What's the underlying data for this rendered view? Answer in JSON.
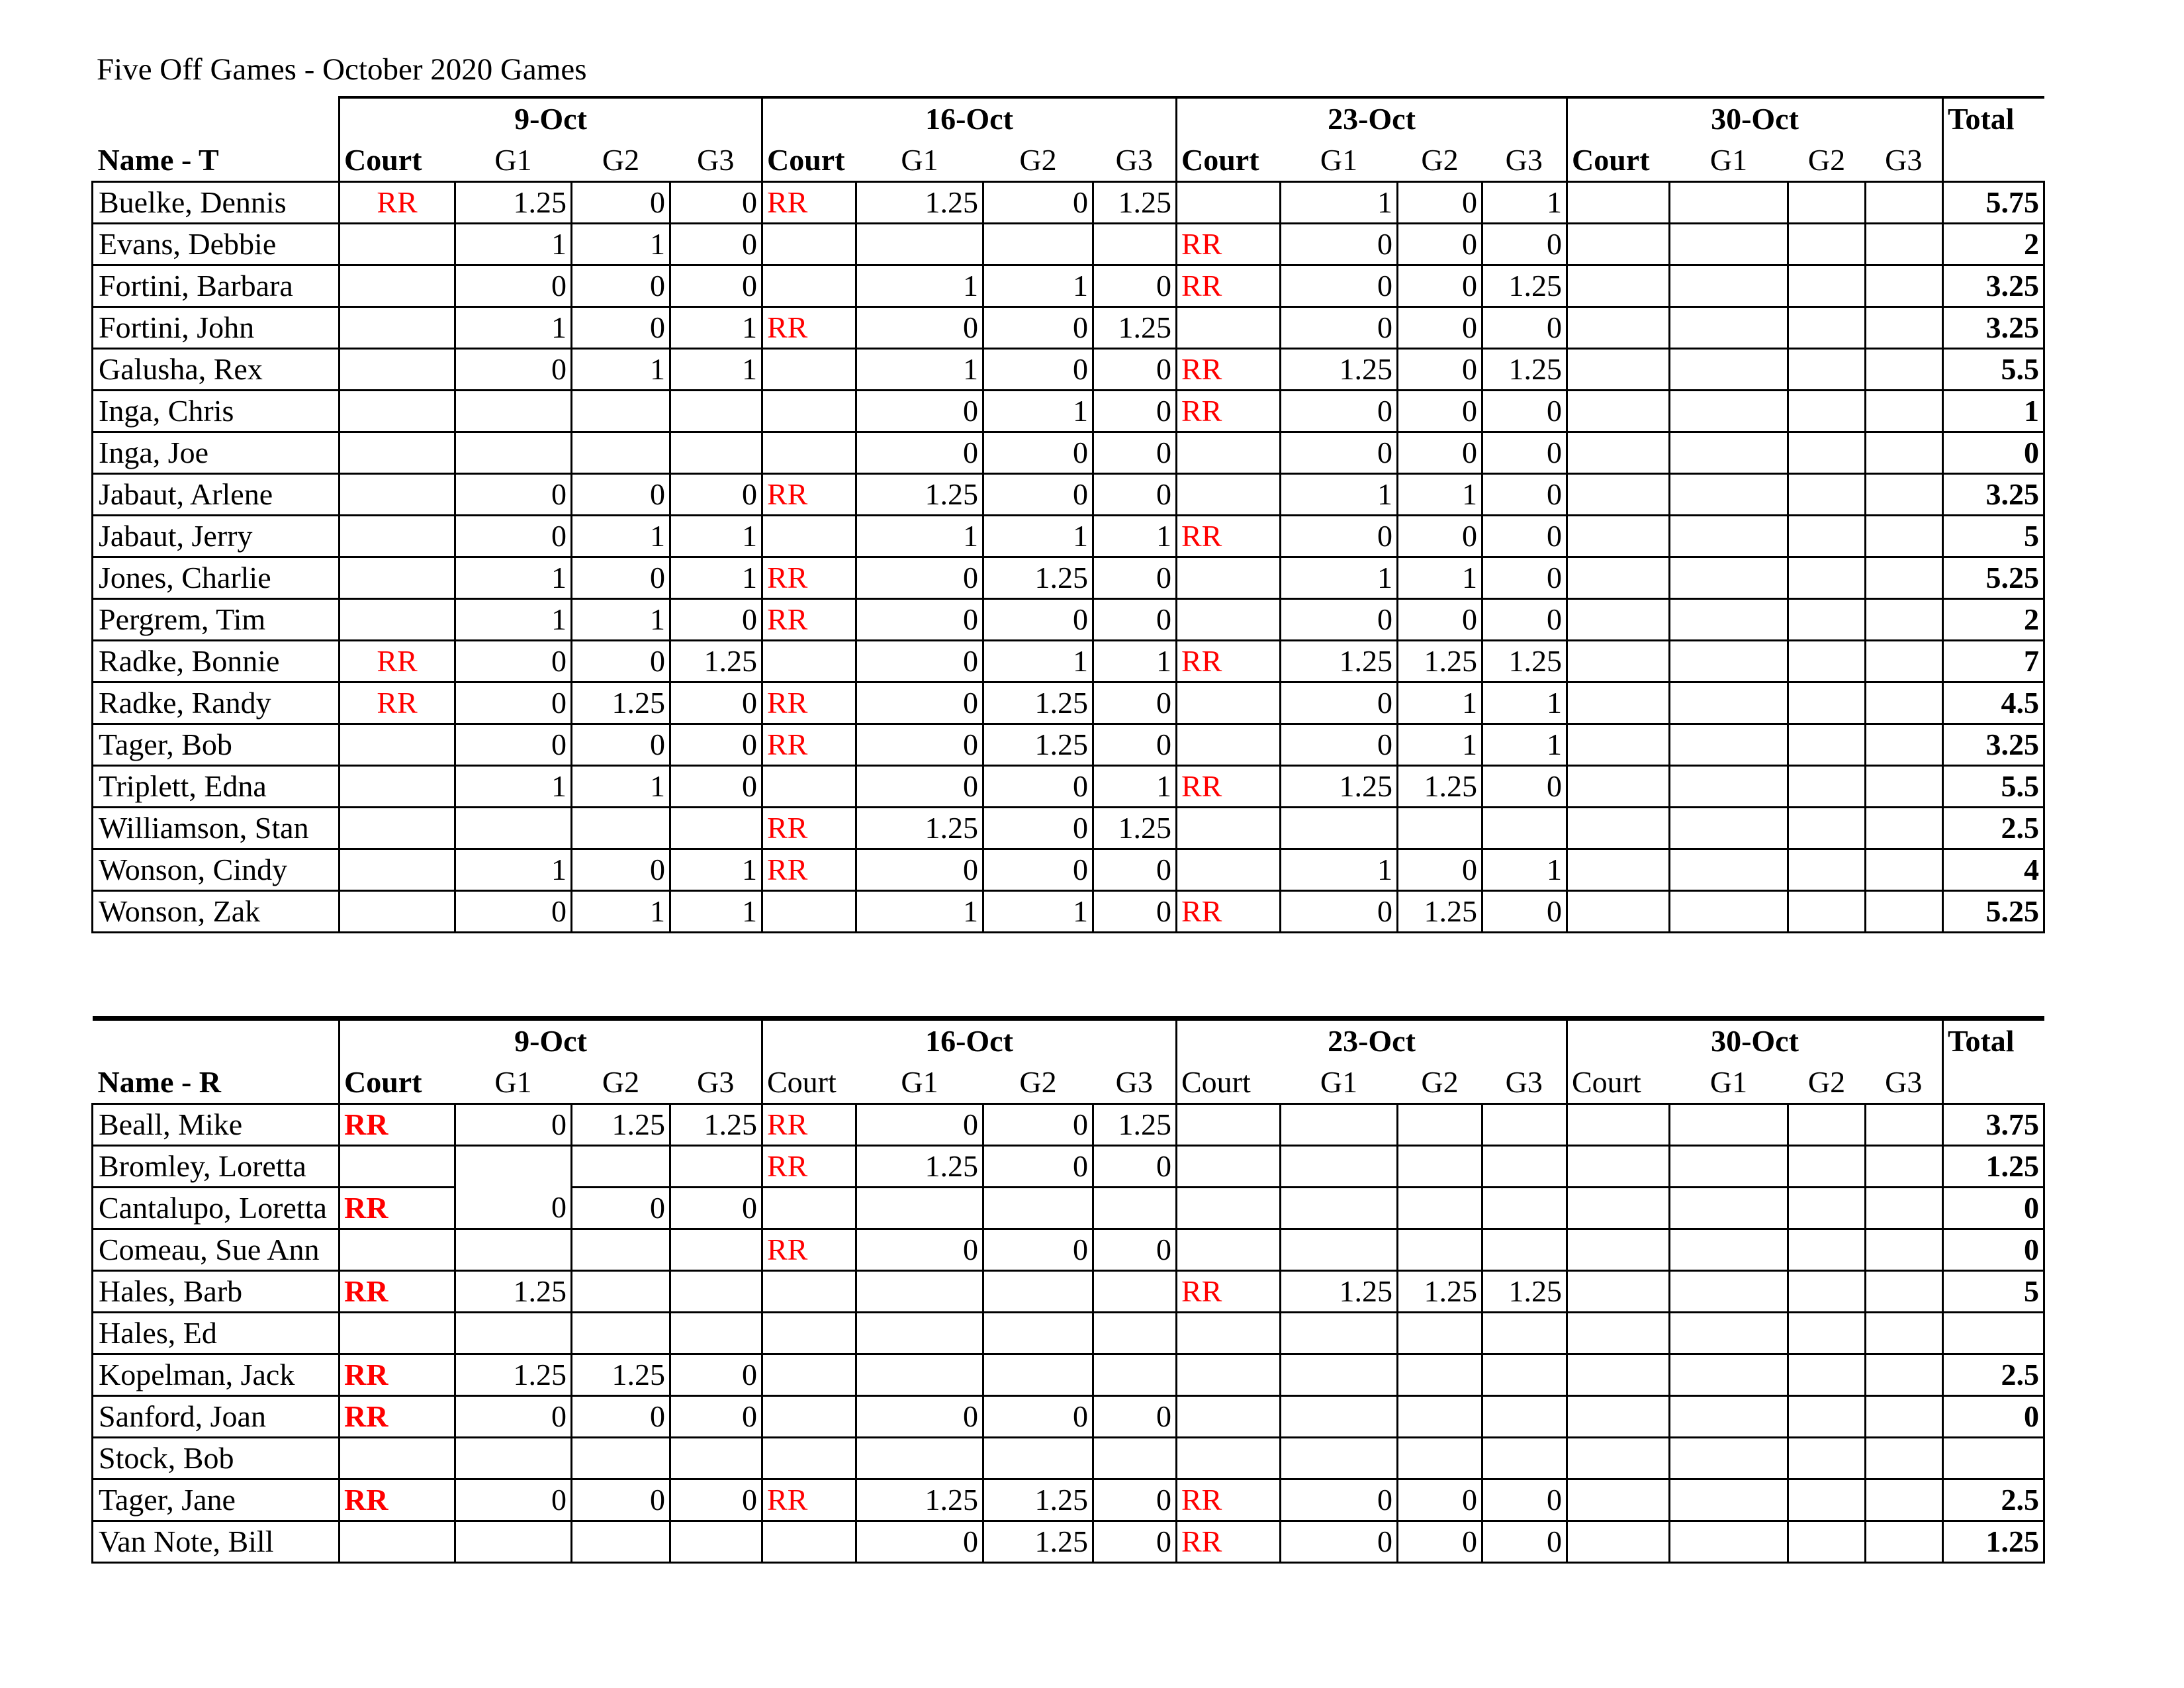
{
  "title": "Five Off Games - October 2020 Games",
  "dates": [
    "9-Oct",
    "16-Oct",
    "23-Oct",
    "30-Oct"
  ],
  "subheaders": {
    "court": "Court",
    "g1": "G1",
    "g2": "G2",
    "g3": "G3"
  },
  "total_label": "Total",
  "colors": {
    "court_marker": "#ff0000"
  },
  "tables": [
    {
      "name_header": "Name - T",
      "rows": [
        {
          "name": "Buelke, Dennis",
          "weeks": [
            [
              "RR",
              "1.25",
              "0",
              "0"
            ],
            [
              "RR",
              "1.25",
              "0",
              "1.25"
            ],
            [
              "",
              "1",
              "0",
              "1"
            ],
            [
              "",
              "",
              "",
              ""
            ]
          ],
          "total": "5.75"
        },
        {
          "name": "Evans, Debbie",
          "weeks": [
            [
              "",
              "1",
              "1",
              "0"
            ],
            [
              "",
              "",
              "",
              ""
            ],
            [
              "RR",
              "0",
              "0",
              "0"
            ],
            [
              "",
              "",
              "",
              ""
            ]
          ],
          "total": "2"
        },
        {
          "name": "Fortini, Barbara",
          "weeks": [
            [
              "",
              "0",
              "0",
              "0"
            ],
            [
              "",
              "1",
              "1",
              "0"
            ],
            [
              "RR",
              "0",
              "0",
              "1.25"
            ],
            [
              "",
              "",
              "",
              ""
            ]
          ],
          "total": "3.25"
        },
        {
          "name": "Fortini, John",
          "weeks": [
            [
              "",
              "1",
              "0",
              "1"
            ],
            [
              "RR",
              "0",
              "0",
              "1.25"
            ],
            [
              "",
              "0",
              "0",
              "0"
            ],
            [
              "",
              "",
              "",
              ""
            ]
          ],
          "total": "3.25"
        },
        {
          "name": "Galusha, Rex",
          "weeks": [
            [
              "",
              "0",
              "1",
              "1"
            ],
            [
              "",
              "1",
              "0",
              "0"
            ],
            [
              "RR",
              "1.25",
              "0",
              "1.25"
            ],
            [
              "",
              "",
              "",
              ""
            ]
          ],
          "total": "5.5"
        },
        {
          "name": "Inga, Chris",
          "weeks": [
            [
              "",
              "",
              "",
              ""
            ],
            [
              "",
              "0",
              "1",
              "0"
            ],
            [
              "RR",
              "0",
              "0",
              "0"
            ],
            [
              "",
              "",
              "",
              ""
            ]
          ],
          "total": "1"
        },
        {
          "name": "Inga, Joe",
          "weeks": [
            [
              "",
              "",
              "",
              ""
            ],
            [
              "",
              "0",
              "0",
              "0"
            ],
            [
              "",
              "0",
              "0",
              "0"
            ],
            [
              "",
              "",
              "",
              ""
            ]
          ],
          "total": "0"
        },
        {
          "name": "Jabaut, Arlene",
          "weeks": [
            [
              "",
              "0",
              "0",
              "0"
            ],
            [
              "RR",
              "1.25",
              "0",
              "0"
            ],
            [
              "",
              "1",
              "1",
              "0"
            ],
            [
              "",
              "",
              "",
              ""
            ]
          ],
          "total": "3.25"
        },
        {
          "name": "Jabaut, Jerry",
          "weeks": [
            [
              "",
              "0",
              "1",
              "1"
            ],
            [
              "",
              "1",
              "1",
              "1"
            ],
            [
              "RR",
              "0",
              "0",
              "0"
            ],
            [
              "",
              "",
              "",
              ""
            ]
          ],
          "total": "5"
        },
        {
          "name": "Jones, Charlie",
          "weeks": [
            [
              "",
              "1",
              "0",
              "1"
            ],
            [
              "RR",
              "0",
              "1.25",
              "0"
            ],
            [
              "",
              "1",
              "1",
              "0"
            ],
            [
              "",
              "",
              "",
              ""
            ]
          ],
          "total": "5.25"
        },
        {
          "name": "Pergrem, Tim",
          "weeks": [
            [
              "",
              "1",
              "1",
              "0"
            ],
            [
              "RR",
              "0",
              "0",
              "0"
            ],
            [
              "",
              "0",
              "0",
              "0"
            ],
            [
              "",
              "",
              "",
              ""
            ]
          ],
          "total": "2"
        },
        {
          "name": "Radke, Bonnie",
          "weeks": [
            [
              "RR",
              "0",
              "0",
              "1.25"
            ],
            [
              "",
              "0",
              "1",
              "1"
            ],
            [
              "RR",
              "1.25",
              "1.25",
              "1.25"
            ],
            [
              "",
              "",
              "",
              ""
            ]
          ],
          "total": "7"
        },
        {
          "name": "Radke, Randy",
          "weeks": [
            [
              "RR",
              "0",
              "1.25",
              "0"
            ],
            [
              "RR",
              "0",
              "1.25",
              "0"
            ],
            [
              "",
              "0",
              "1",
              "1"
            ],
            [
              "",
              "",
              "",
              ""
            ]
          ],
          "total": "4.5"
        },
        {
          "name": "Tager, Bob",
          "weeks": [
            [
              "",
              "0",
              "0",
              "0"
            ],
            [
              "RR",
              "0",
              "1.25",
              "0"
            ],
            [
              "",
              "0",
              "1",
              "1"
            ],
            [
              "",
              "",
              "",
              ""
            ]
          ],
          "total": "3.25"
        },
        {
          "name": "Triplett, Edna",
          "weeks": [
            [
              "",
              "1",
              "1",
              "0"
            ],
            [
              "",
              "0",
              "0",
              "1"
            ],
            [
              "RR",
              "1.25",
              "1.25",
              "0"
            ],
            [
              "",
              "",
              "",
              ""
            ]
          ],
          "total": "5.5"
        },
        {
          "name": "Williamson, Stan",
          "weeks": [
            [
              "",
              "",
              "",
              ""
            ],
            [
              "RR",
              "1.25",
              "0",
              "1.25"
            ],
            [
              "",
              "",
              "",
              ""
            ],
            [
              "",
              "",
              "",
              ""
            ]
          ],
          "total": "2.5"
        },
        {
          "name": "Wonson, Cindy",
          "weeks": [
            [
              "",
              "1",
              "0",
              "1"
            ],
            [
              "RR",
              "0",
              "0",
              "0"
            ],
            [
              "",
              "1",
              "0",
              "1"
            ],
            [
              "",
              "",
              "",
              ""
            ]
          ],
          "total": "4"
        },
        {
          "name": "Wonson, Zak",
          "weeks": [
            [
              "",
              "0",
              "1",
              "1"
            ],
            [
              "",
              "1",
              "1",
              "0"
            ],
            [
              "RR",
              "0",
              "1.25",
              "0"
            ],
            [
              "",
              "",
              "",
              ""
            ]
          ],
          "total": "5.25"
        }
      ]
    },
    {
      "name_header": "Name - R",
      "rows": [
        {
          "name": "Beall, Mike",
          "weeks": [
            [
              "RR",
              "0",
              "1.25",
              "1.25"
            ],
            [
              "RR",
              "0",
              "0",
              "1.25"
            ],
            [
              "",
              "",
              "",
              ""
            ],
            [
              "",
              "",
              "",
              ""
            ]
          ],
          "total": "3.75"
        },
        {
          "name": "Bromley, Loretta",
          "weeks": [
            [
              "",
              "",
              "",
              ""
            ],
            [
              "RR",
              "1.25",
              "0",
              "0"
            ],
            [
              "",
              "",
              "",
              ""
            ],
            [
              "",
              "",
              "",
              ""
            ]
          ],
          "total": "1.25"
        },
        {
          "name": "Cantalupo, Loretta",
          "weeks": [
            [
              "RR",
              "0",
              "0",
              "0"
            ],
            [
              "",
              "",
              "",
              ""
            ],
            [
              "",
              "",
              "",
              ""
            ],
            [
              "",
              "",
              "",
              ""
            ]
          ],
          "total": "0"
        },
        {
          "name": "Comeau, Sue Ann",
          "weeks": [
            [
              "",
              "",
              "",
              ""
            ],
            [
              "RR",
              "0",
              "0",
              "0"
            ],
            [
              "",
              "",
              "",
              ""
            ],
            [
              "",
              "",
              "",
              ""
            ]
          ],
          "total": "0"
        },
        {
          "name": "Hales, Barb",
          "weeks": [
            [
              "RR",
              "1.25",
              "",
              ""
            ],
            [
              "",
              "",
              "",
              ""
            ],
            [
              "RR",
              "1.25",
              "1.25",
              "1.25"
            ],
            [
              "",
              "",
              "",
              ""
            ]
          ],
          "total": "5"
        },
        {
          "name": "Hales, Ed",
          "weeks": [
            [
              "",
              "",
              "",
              ""
            ],
            [
              "",
              "",
              "",
              ""
            ],
            [
              "",
              "",
              "",
              ""
            ],
            [
              "",
              "",
              "",
              ""
            ]
          ],
          "total": ""
        },
        {
          "name": "Kopelman, Jack",
          "weeks": [
            [
              "RR",
              "1.25",
              "1.25",
              "0"
            ],
            [
              "",
              "",
              "",
              ""
            ],
            [
              "",
              "",
              "",
              ""
            ],
            [
              "",
              "",
              "",
              ""
            ]
          ],
          "total": "2.5"
        },
        {
          "name": "Sanford, Joan",
          "weeks": [
            [
              "RR",
              "0",
              "0",
              "0"
            ],
            [
              "",
              "0",
              "0",
              "0"
            ],
            [
              "",
              "",
              "",
              ""
            ],
            [
              "",
              "",
              "",
              ""
            ]
          ],
          "total": "0"
        },
        {
          "name": "Stock, Bob",
          "weeks": [
            [
              "",
              "",
              "",
              ""
            ],
            [
              "",
              "",
              "",
              ""
            ],
            [
              "",
              "",
              "",
              ""
            ],
            [
              "",
              "",
              "",
              ""
            ]
          ],
          "total": ""
        },
        {
          "name": "Tager, Jane",
          "weeks": [
            [
              "RR",
              "0",
              "0",
              "0"
            ],
            [
              "RR",
              "1.25",
              "1.25",
              "0"
            ],
            [
              "RR",
              "0",
              "0",
              "0"
            ],
            [
              "",
              "",
              "",
              ""
            ]
          ],
          "total": "2.5"
        },
        {
          "name": "Van Note, Bill",
          "weeks": [
            [
              "",
              "",
              "",
              ""
            ],
            [
              "",
              "0",
              "1.25",
              "0"
            ],
            [
              "RR",
              "0",
              "0",
              "0"
            ],
            [
              "",
              "",
              "",
              ""
            ]
          ],
          "total": "1.25"
        }
      ]
    }
  ]
}
